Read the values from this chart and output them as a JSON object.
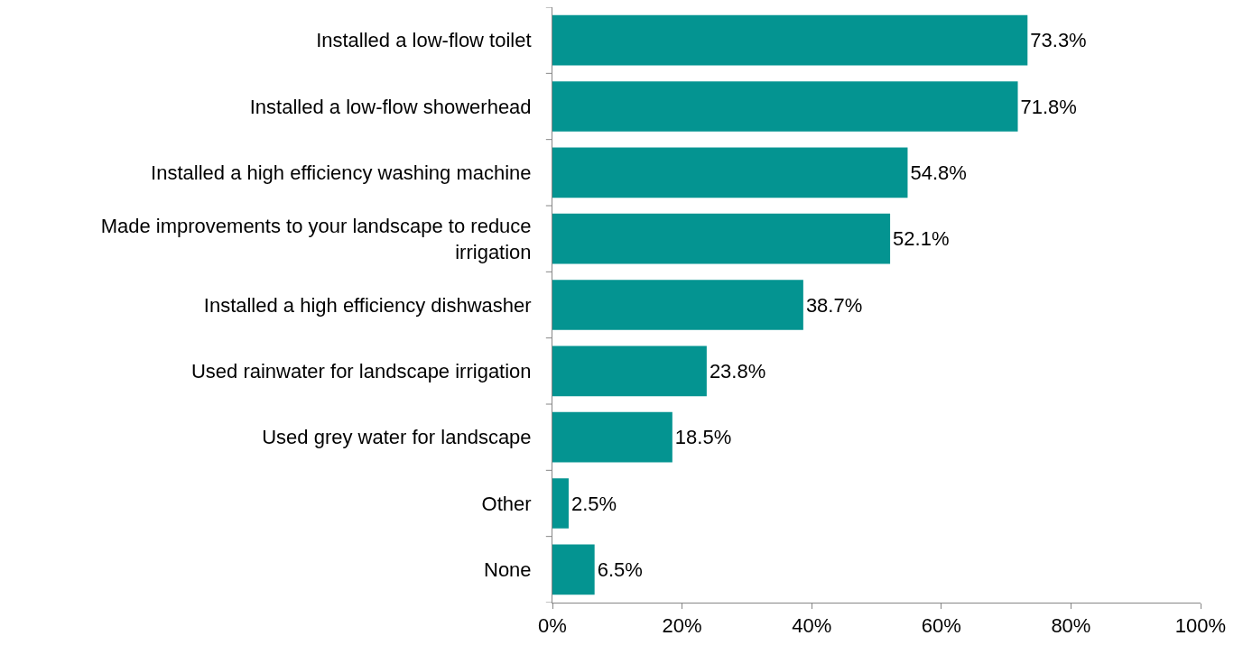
{
  "chart_data": {
    "type": "bar",
    "orientation": "horizontal",
    "categories": [
      "Installed a low-flow toilet",
      "Installed a low-flow showerhead",
      "Installed a high efficiency washing machine",
      "Made improvements to your landscape to reduce irrigation",
      "Installed a high efficiency dishwasher",
      "Used rainwater for landscape irrigation",
      "Used grey water for landscape",
      "Other",
      "None"
    ],
    "values": [
      73.3,
      71.8,
      54.8,
      52.1,
      38.7,
      23.8,
      18.5,
      2.5,
      6.5
    ],
    "value_labels": [
      "73.3%",
      "71.8%",
      "54.8%",
      "52.1%",
      "38.7%",
      "23.8%",
      "18.5%",
      "2.5%",
      "6.5%"
    ],
    "color": "#049491",
    "xlim": [
      0,
      100
    ],
    "xticks": [
      {
        "value": 0,
        "label": "0%"
      },
      {
        "value": 20,
        "label": "20%"
      },
      {
        "value": 40,
        "label": "40%"
      },
      {
        "value": 60,
        "label": "60%"
      },
      {
        "value": 80,
        "label": "80%"
      },
      {
        "value": 100,
        "label": "100%"
      }
    ],
    "marker": "none"
  }
}
